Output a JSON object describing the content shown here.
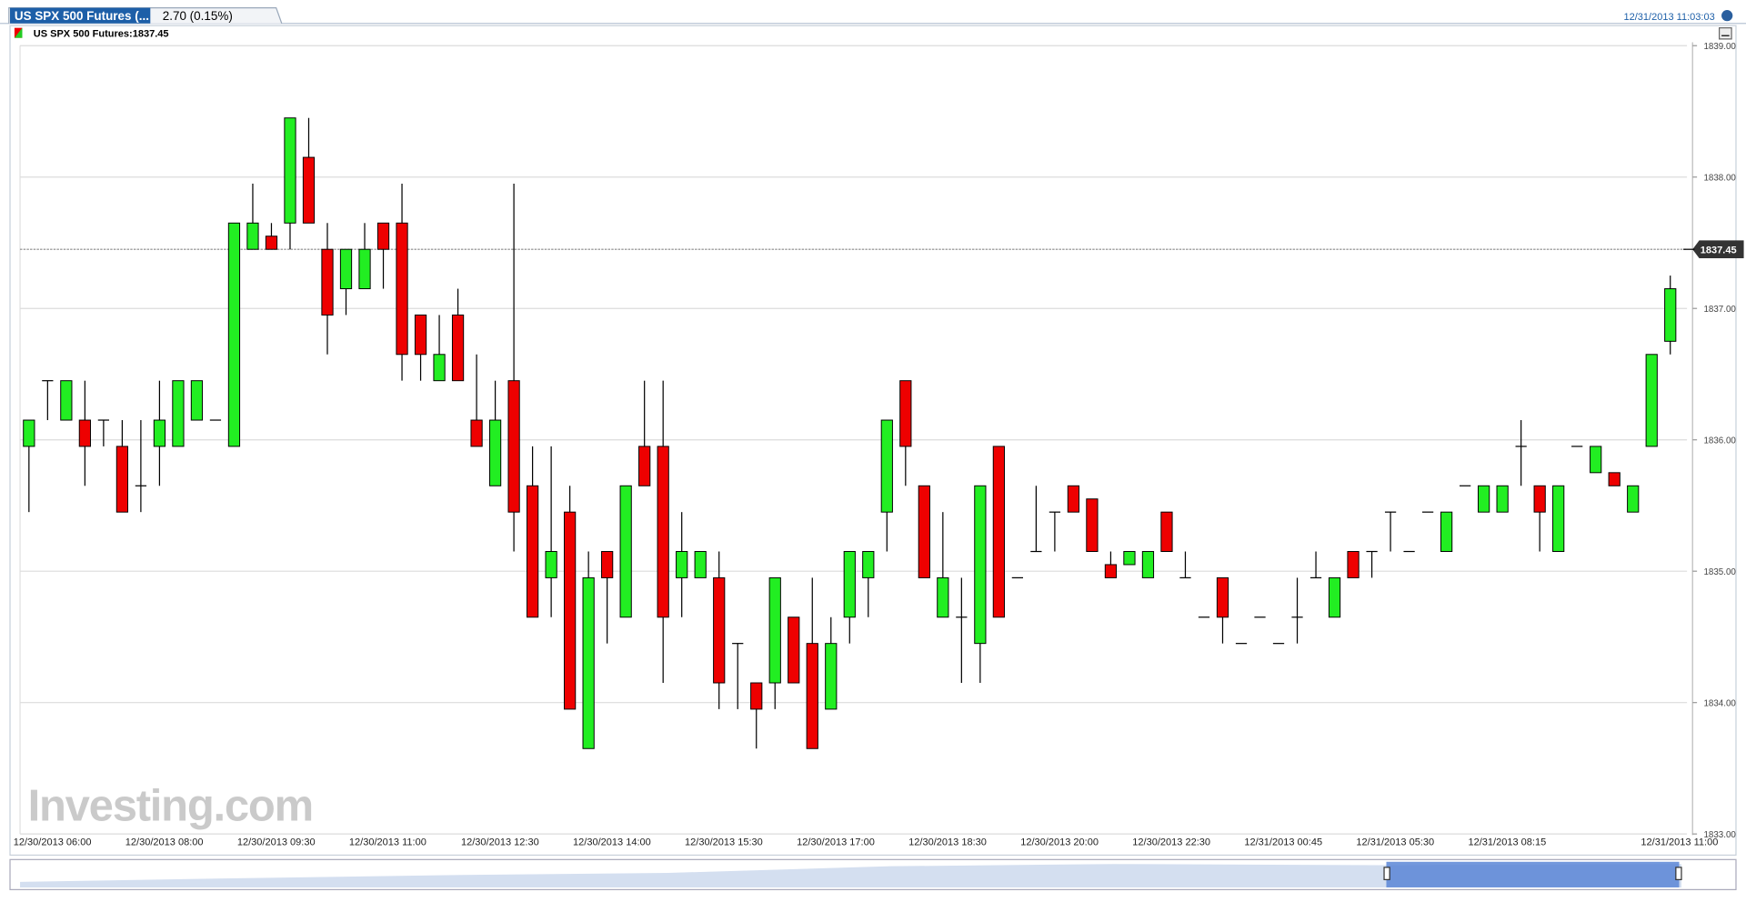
{
  "header": {
    "tab_title": "US SPX 500 Futures (...",
    "change": "2.70 (0.15%)",
    "timestamp": "12/31/2013 11:03:03",
    "watermark": "Investing.com"
  },
  "chart_data": {
    "type": "candlestick",
    "title": "US SPX 500 Futures:1837.45",
    "up_color": "#22ee22",
    "down_color": "#ee0000",
    "ylim": [
      1833.0,
      1839.0
    ],
    "yticks": [
      {
        "value": 1833,
        "label": "1833.00"
      },
      {
        "value": 1834,
        "label": "1834.00"
      },
      {
        "value": 1835,
        "label": "1835.00"
      },
      {
        "value": 1836,
        "label": "1836.00"
      },
      {
        "value": 1837,
        "label": "1837.00"
      },
      {
        "value": 1838,
        "label": "1838.00"
      },
      {
        "value": 1839,
        "label": "1839.00"
      }
    ],
    "grid": true,
    "last_price": {
      "value": 1837.45,
      "label": "1837.45"
    },
    "categories": [
      "12/30/2013 06:00",
      null,
      null,
      null,
      null,
      null,
      "12/30/2013 08:00",
      null,
      null,
      null,
      null,
      null,
      "12/30/2013 09:30",
      null,
      null,
      null,
      null,
      null,
      "12/30/2013 11:00",
      null,
      null,
      null,
      null,
      null,
      "12/30/2013 12:30",
      null,
      null,
      null,
      null,
      null,
      "12/30/2013 14:00",
      null,
      null,
      null,
      null,
      null,
      "12/30/2013 15:30",
      null,
      null,
      null,
      null,
      null,
      "12/30/2013 17:00",
      null,
      null,
      null,
      null,
      null,
      "12/30/2013 18:30",
      null,
      null,
      null,
      null,
      null,
      "12/30/2013 20:00",
      null,
      null,
      null,
      null,
      null,
      "12/30/2013 22:30",
      null,
      null,
      null,
      null,
      null,
      "12/31/2013 00:45",
      null,
      null,
      null,
      null,
      null,
      "12/31/2013 05:30",
      null,
      null,
      null,
      null,
      null,
      "12/31/2013 08:15",
      null,
      null,
      null,
      null,
      null,
      null,
      null,
      null,
      null,
      null,
      "12/31/2013 11:00"
    ],
    "ohlc": [
      [
        1835.95,
        1836.15,
        1835.45,
        1836.15
      ],
      [
        1836.45,
        1836.45,
        1836.15,
        1836.45
      ],
      [
        1836.15,
        1836.45,
        1836.15,
        1836.45
      ],
      [
        1836.15,
        1836.45,
        1835.65,
        1835.95
      ],
      [
        1836.15,
        1836.15,
        1835.95,
        1836.15
      ],
      [
        1835.95,
        1836.15,
        1835.45,
        1835.45
      ],
      [
        1835.65,
        1836.15,
        1835.45,
        1835.65
      ],
      [
        1835.95,
        1836.45,
        1835.65,
        1836.15
      ],
      [
        1835.95,
        1836.45,
        1835.95,
        1836.45
      ],
      [
        1836.15,
        1836.45,
        1836.15,
        1836.45
      ],
      [
        1836.15,
        1836.15,
        1836.15,
        1836.15
      ],
      [
        1835.95,
        1837.65,
        1835.95,
        1837.65
      ],
      [
        1837.45,
        1837.95,
        1837.45,
        1837.65
      ],
      [
        1837.55,
        1837.65,
        1837.45,
        1837.45
      ],
      [
        1837.65,
        1838.45,
        1837.45,
        1838.45
      ],
      [
        1838.15,
        1838.45,
        1837.65,
        1837.65
      ],
      [
        1837.45,
        1837.65,
        1836.65,
        1836.95
      ],
      [
        1837.15,
        1837.45,
        1836.95,
        1837.45
      ],
      [
        1837.15,
        1837.65,
        1837.15,
        1837.45
      ],
      [
        1837.65,
        1837.65,
        1837.15,
        1837.45
      ],
      [
        1837.65,
        1837.95,
        1836.45,
        1836.65
      ],
      [
        1836.95,
        1836.95,
        1836.45,
        1836.65
      ],
      [
        1836.45,
        1836.95,
        1836.45,
        1836.65
      ],
      [
        1836.95,
        1837.15,
        1836.45,
        1836.45
      ],
      [
        1836.15,
        1836.65,
        1835.95,
        1835.95
      ],
      [
        1835.65,
        1836.45,
        1835.65,
        1836.15
      ],
      [
        1836.45,
        1837.95,
        1835.15,
        1835.45
      ],
      [
        1835.65,
        1835.95,
        1834.65,
        1834.65
      ],
      [
        1834.95,
        1835.95,
        1834.65,
        1835.15
      ],
      [
        1835.45,
        1835.65,
        1833.95,
        1833.95
      ],
      [
        1833.65,
        1835.15,
        1833.65,
        1834.95
      ],
      [
        1835.15,
        1835.15,
        1834.45,
        1834.95
      ],
      [
        1834.65,
        1835.65,
        1834.65,
        1835.65
      ],
      [
        1835.95,
        1836.45,
        1835.65,
        1835.65
      ],
      [
        1835.95,
        1836.45,
        1834.15,
        1834.65
      ],
      [
        1834.95,
        1835.45,
        1834.65,
        1835.15
      ],
      [
        1834.95,
        1835.15,
        1834.95,
        1835.15
      ],
      [
        1834.95,
        1835.15,
        1833.95,
        1834.15
      ],
      [
        1834.45,
        1834.45,
        1833.95,
        1834.45
      ],
      [
        1834.15,
        1834.15,
        1833.65,
        1833.95
      ],
      [
        1834.15,
        1834.95,
        1833.95,
        1834.95
      ],
      [
        1834.65,
        1834.65,
        1834.15,
        1834.15
      ],
      [
        1834.45,
        1834.95,
        1833.65,
        1833.65
      ],
      [
        1833.95,
        1834.65,
        1833.95,
        1834.45
      ],
      [
        1834.65,
        1835.15,
        1834.45,
        1835.15
      ],
      [
        1834.95,
        1835.15,
        1834.65,
        1835.15
      ],
      [
        1835.45,
        1836.15,
        1835.15,
        1836.15
      ],
      [
        1836.45,
        1836.45,
        1835.65,
        1835.95
      ],
      [
        1835.65,
        1835.65,
        1834.95,
        1834.95
      ],
      [
        1834.65,
        1835.45,
        1834.65,
        1834.95
      ],
      [
        1834.65,
        1834.95,
        1834.15,
        1834.65
      ],
      [
        1834.45,
        1835.65,
        1834.15,
        1835.65
      ],
      [
        1835.95,
        1835.95,
        1834.65,
        1834.65
      ],
      [
        1834.95,
        1834.95,
        1834.95,
        1834.95
      ],
      [
        1835.15,
        1835.65,
        1835.15,
        1835.15
      ],
      [
        1835.45,
        1835.45,
        1835.15,
        1835.45
      ],
      [
        1835.65,
        1835.65,
        1835.45,
        1835.45
      ],
      [
        1835.55,
        1835.55,
        1835.15,
        1835.15
      ],
      [
        1835.05,
        1835.15,
        1834.95,
        1834.95
      ],
      [
        1835.05,
        1835.15,
        1835.05,
        1835.15
      ],
      [
        1834.95,
        1835.15,
        1834.95,
        1835.15
      ],
      [
        1835.45,
        1835.45,
        1835.15,
        1835.15
      ],
      [
        1834.95,
        1835.15,
        1834.95,
        1834.95
      ],
      [
        1834.65,
        1834.65,
        1834.65,
        1834.65
      ],
      [
        1834.95,
        1834.95,
        1834.45,
        1834.65
      ],
      [
        1834.45,
        1834.45,
        1834.45,
        1834.45
      ],
      [
        1834.65,
        1834.65,
        1834.65,
        1834.65
      ],
      [
        1834.45,
        1834.45,
        1834.45,
        1834.45
      ],
      [
        1834.65,
        1834.95,
        1834.45,
        1834.65
      ],
      [
        1834.95,
        1835.15,
        1834.95,
        1834.95
      ],
      [
        1834.65,
        1834.95,
        1834.65,
        1834.95
      ],
      [
        1835.15,
        1835.15,
        1834.95,
        1834.95
      ],
      [
        1835.15,
        1835.15,
        1834.95,
        1835.15
      ],
      [
        1835.45,
        1835.45,
        1835.15,
        1835.45
      ],
      [
        1835.15,
        1835.15,
        1835.15,
        1835.15
      ],
      [
        1835.45,
        1835.45,
        1835.45,
        1835.45
      ],
      [
        1835.15,
        1835.45,
        1835.15,
        1835.45
      ],
      [
        1835.65,
        1835.65,
        1835.65,
        1835.65
      ],
      [
        1835.45,
        1835.65,
        1835.45,
        1835.65
      ],
      [
        1835.45,
        1835.65,
        1835.45,
        1835.65
      ],
      [
        1835.95,
        1836.15,
        1835.65,
        1835.95
      ],
      [
        1835.65,
        1835.65,
        1835.15,
        1835.45
      ],
      [
        1835.15,
        1835.65,
        1835.15,
        1835.65
      ],
      [
        1835.95,
        1835.95,
        1835.95,
        1835.95
      ],
      [
        1835.75,
        1835.95,
        1835.75,
        1835.95
      ],
      [
        1835.75,
        1835.75,
        1835.65,
        1835.65
      ],
      [
        1835.45,
        1835.65,
        1835.45,
        1835.65
      ],
      [
        1835.95,
        1836.65,
        1835.95,
        1836.65
      ],
      [
        1836.75,
        1837.25,
        1836.65,
        1837.15
      ],
      [
        1837.45,
        1837.45,
        1837.45,
        1837.45
      ]
    ]
  }
}
